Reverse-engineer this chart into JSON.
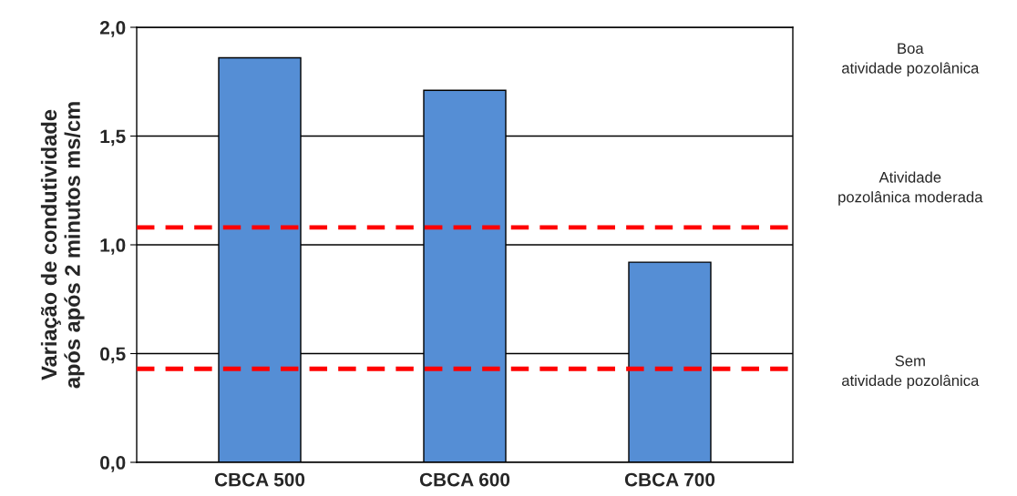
{
  "chart_data": {
    "type": "bar",
    "ylabel": "Variação de condutividade\napós após 2 minutos ms/cm",
    "categories": [
      "CBCA 500",
      "CBCA 600",
      "CBCA 700"
    ],
    "values": [
      1.86,
      1.71,
      0.92
    ],
    "color": "#558ed5",
    "ylim": [
      0,
      2
    ],
    "yticks": [
      {
        "value": 0,
        "label": "0,0"
      },
      {
        "value": 0.5,
        "label": "0,5"
      },
      {
        "value": 1,
        "label": "1,0"
      },
      {
        "value": 1.5,
        "label": "1,5"
      },
      {
        "value": 2,
        "label": "2,0"
      }
    ],
    "grid": "y",
    "ref_lines": [
      {
        "axis": "y",
        "value": 1.08,
        "color": "#ff0000",
        "line_style": "dashed"
      },
      {
        "axis": "y",
        "value": 0.43,
        "color": "#ff0000",
        "line_style": "dashed"
      }
    ],
    "annotations": [
      "Boa\natividade pozolânica",
      "Atividade\npozolânica moderada",
      "Sem\natividade pozolânica"
    ]
  }
}
